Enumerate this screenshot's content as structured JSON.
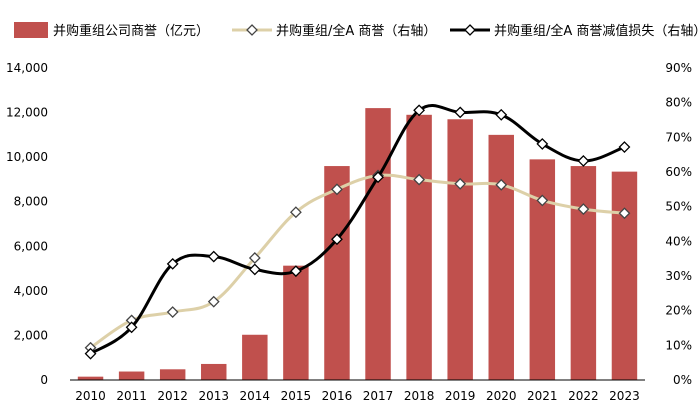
{
  "chart_data": {
    "type": "bar",
    "categories": [
      "2010",
      "2011",
      "2012",
      "2013",
      "2014",
      "2015",
      "2016",
      "2017",
      "2018",
      "2019",
      "2020",
      "2021",
      "2022",
      "2023"
    ],
    "legend": {
      "placement": "top"
    },
    "series": [
      {
        "name": "并购重组公司商誉（亿元）",
        "type": "bar",
        "axis": "left",
        "color": "#c0504d",
        "values": [
          150,
          380,
          480,
          720,
          2030,
          5130,
          9600,
          12200,
          11900,
          11700,
          11000,
          9900,
          9600,
          9350
        ]
      },
      {
        "name": "并购重组/全A 商誉（右轴）",
        "type": "line",
        "axis": "right",
        "color": "#ddd0a8",
        "values": [
          9.3,
          17.2,
          19.6,
          22.6,
          35.2,
          48.4,
          55.0,
          59.0,
          57.8,
          56.6,
          56.3,
          51.8,
          49.3,
          48.1
        ]
      },
      {
        "name": "并购重组/全A 商誉减值损失（右轴）",
        "type": "line",
        "axis": "right",
        "color": "#000000",
        "values": [
          7.6,
          15.2,
          33.5,
          35.6,
          31.9,
          31.4,
          40.6,
          58.5,
          77.8,
          77.2,
          76.5,
          68.1,
          63.2,
          67.2
        ]
      }
    ],
    "left_axis": {
      "ylim": [
        0,
        14000
      ],
      "ticks": [
        0,
        2000,
        4000,
        6000,
        8000,
        10000,
        12000,
        14000
      ],
      "tick_labels": [
        "0",
        "2,000",
        "4,000",
        "6,000",
        "8,000",
        "10,000",
        "12,000",
        "14,000"
      ]
    },
    "right_axis": {
      "ylim": [
        0,
        90
      ],
      "ticks": [
        0,
        10,
        20,
        30,
        40,
        50,
        60,
        70,
        80,
        90
      ],
      "tick_labels": [
        "0%",
        "10%",
        "20%",
        "30%",
        "40%",
        "50%",
        "60%",
        "70%",
        "80%",
        "90%"
      ]
    },
    "grid": false
  }
}
